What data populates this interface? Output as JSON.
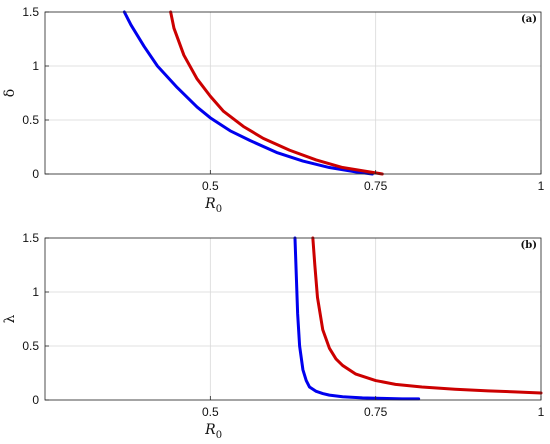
{
  "chart_data": [
    {
      "panel": "(a)",
      "type": "line",
      "xlabel": "R",
      "xlabel_sub": "0",
      "ylabel": "δ",
      "xlim": [
        0.25,
        1
      ],
      "ylim": [
        0,
        1.5
      ],
      "xticks": [
        0.5,
        0.75,
        1
      ],
      "xtick_labels": [
        "0.5",
        "0.75",
        "1"
      ],
      "yticks": [
        0,
        0.5,
        1,
        1.5
      ],
      "ytick_labels": [
        "0",
        "0.5",
        "1",
        "1.5"
      ],
      "grid": true,
      "series": [
        {
          "color": "#0000ee",
          "x": [
            0.37,
            0.38,
            0.4,
            0.42,
            0.45,
            0.48,
            0.5,
            0.53,
            0.56,
            0.6,
            0.64,
            0.68,
            0.72,
            0.745
          ],
          "y": [
            1.5,
            1.38,
            1.18,
            1.0,
            0.8,
            0.62,
            0.52,
            0.4,
            0.31,
            0.2,
            0.12,
            0.06,
            0.02,
            0.0
          ]
        },
        {
          "color": "#cc0000",
          "x": [
            0.44,
            0.445,
            0.46,
            0.48,
            0.5,
            0.52,
            0.55,
            0.58,
            0.62,
            0.66,
            0.7,
            0.73,
            0.76
          ],
          "y": [
            1.5,
            1.35,
            1.1,
            0.88,
            0.72,
            0.58,
            0.44,
            0.33,
            0.22,
            0.13,
            0.06,
            0.03,
            0.0
          ]
        }
      ]
    },
    {
      "panel": "(b)",
      "type": "line",
      "xlabel": "R",
      "xlabel_sub": "0",
      "ylabel": "λ",
      "xlim": [
        0.25,
        1
      ],
      "ylim": [
        0,
        1.5
      ],
      "xticks": [
        0.5,
        0.75,
        1
      ],
      "xtick_labels": [
        "0.5",
        "0.75",
        "1"
      ],
      "yticks": [
        0,
        0.5,
        1,
        1.5
      ],
      "ytick_labels": [
        "0",
        "0.5",
        "1",
        "1.5"
      ],
      "grid": true,
      "series": [
        {
          "color": "#0000ee",
          "x": [
            0.628,
            0.63,
            0.632,
            0.635,
            0.64,
            0.645,
            0.65,
            0.66,
            0.67,
            0.68,
            0.7,
            0.73,
            0.76,
            0.79,
            0.815
          ],
          "y": [
            1.5,
            1.15,
            0.8,
            0.5,
            0.28,
            0.18,
            0.12,
            0.08,
            0.06,
            0.045,
            0.03,
            0.02,
            0.015,
            0.01,
            0.01
          ]
        },
        {
          "color": "#cc0000",
          "x": [
            0.655,
            0.658,
            0.662,
            0.67,
            0.68,
            0.69,
            0.7,
            0.72,
            0.75,
            0.78,
            0.82,
            0.87,
            0.92,
            0.96,
            1.0
          ],
          "y": [
            1.5,
            1.25,
            0.95,
            0.65,
            0.48,
            0.38,
            0.32,
            0.24,
            0.18,
            0.145,
            0.12,
            0.1,
            0.085,
            0.075,
            0.065
          ]
        }
      ]
    }
  ]
}
